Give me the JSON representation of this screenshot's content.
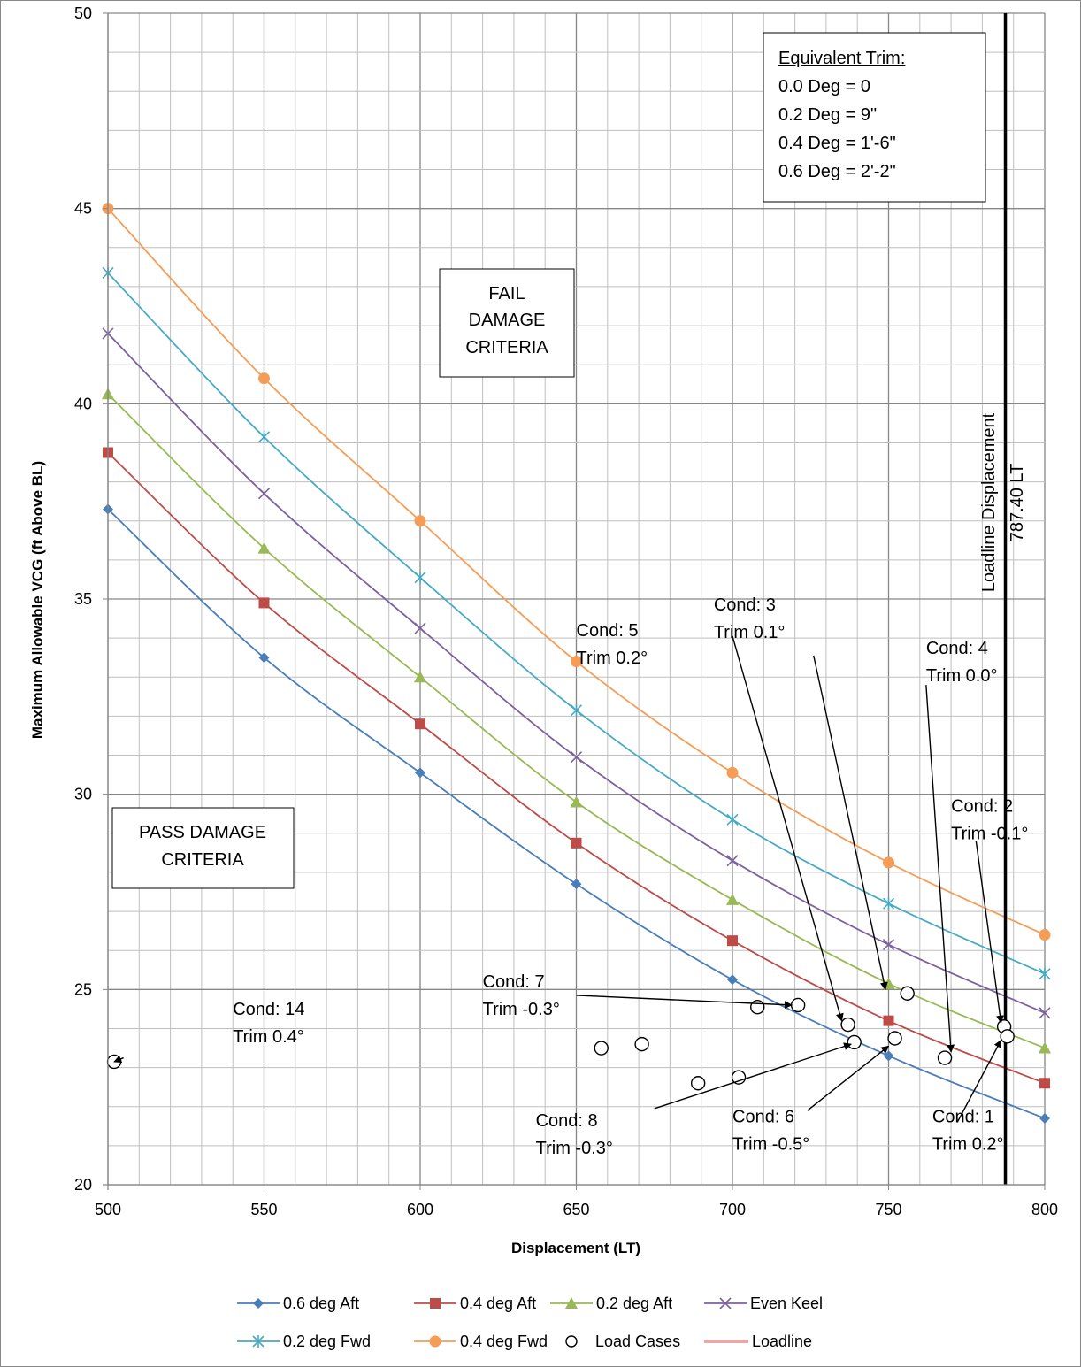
{
  "chart_data": {
    "type": "line",
    "xlabel": "Displacement  (LT)",
    "ylabel": "Maximum Allowable  VCG (ft Above BL)",
    "xlim": [
      500,
      800
    ],
    "ylim": [
      20,
      50
    ],
    "x_ticks": [
      "500",
      "550",
      "600",
      "650",
      "700",
      "750",
      "800"
    ],
    "y_ticks": [
      "20",
      "25",
      "30",
      "35",
      "40",
      "45",
      "50"
    ],
    "grid": true,
    "legend_position": "bottom",
    "x": [
      500,
      550,
      600,
      650,
      700,
      750,
      800
    ],
    "series": [
      {
        "name": "0.6 deg Aft",
        "color": "#4a7ebb",
        "marker": "diamond",
        "values": [
          37.3,
          33.5,
          30.55,
          27.7,
          25.25,
          23.3,
          21.7
        ]
      },
      {
        "name": "0.4 deg Aft",
        "color": "#be4b48",
        "marker": "square",
        "values": [
          38.75,
          34.9,
          31.8,
          28.75,
          26.25,
          24.2,
          22.6
        ]
      },
      {
        "name": "0.2 deg Aft",
        "color": "#98b954",
        "marker": "triangle",
        "values": [
          40.25,
          36.3,
          33.0,
          29.8,
          27.3,
          25.15,
          23.5
        ]
      },
      {
        "name": "Even Keel",
        "color": "#7d60a0",
        "marker": "x",
        "values": [
          41.8,
          37.7,
          34.25,
          30.95,
          28.3,
          26.15,
          24.4
        ]
      },
      {
        "name": "0.2 deg Fwd",
        "color": "#46aac5",
        "marker": "star",
        "values": [
          43.35,
          39.15,
          35.55,
          32.15,
          29.35,
          27.2,
          25.4
        ]
      },
      {
        "name": "0.4 deg Fwd",
        "color": "#f59d56",
        "marker": "circle",
        "values": [
          45.0,
          40.65,
          37.0,
          33.4,
          30.55,
          28.25,
          26.4
        ]
      }
    ],
    "load_cases": {
      "name": "Load Cases",
      "points": [
        [
          502,
          23.15
        ],
        [
          658,
          23.5
        ],
        [
          671,
          23.6
        ],
        [
          689,
          22.6
        ],
        [
          702,
          22.75
        ],
        [
          708,
          24.55
        ],
        [
          721,
          24.6
        ],
        [
          737,
          24.1
        ],
        [
          739,
          23.65
        ],
        [
          752,
          23.75
        ],
        [
          756,
          24.9
        ],
        [
          768,
          23.25
        ],
        [
          787,
          24.05
        ],
        [
          788,
          23.8
        ]
      ]
    },
    "loadline": {
      "name": "Loadline",
      "legend_color": "#e6a9a9",
      "x": 787.4,
      "label_1": "Loadline Displacement",
      "label_2": "787.40 LT"
    },
    "callouts": [
      {
        "line1": "Cond: 14",
        "line2": "Trim 0.4°",
        "tx": 540,
        "ty": 24.35,
        "ax": 505,
        "ay": 23.25,
        "hx": 502,
        "hy": 23.15
      },
      {
        "line1": "Cond: 7",
        "line2": "Trim -0.3°",
        "tx": 620,
        "ty": 25.05,
        "ax": 650,
        "ay": 24.85,
        "hx": 719,
        "hy": 24.6
      },
      {
        "line1": "Cond: 5",
        "line2": "Trim 0.2°",
        "tx": 650,
        "ty": 34.05,
        "ax": 700,
        "ay": 34.05,
        "hx": 735,
        "hy": 24.2
      },
      {
        "line1": "Cond: 3",
        "line2": "Trim 0.1°",
        "tx": 694,
        "ty": 34.7,
        "ax": 726,
        "ay": 33.55,
        "hx": 749,
        "hy": 25.0
      },
      {
        "line1": "Cond: 4",
        "line2": "Trim 0.0°",
        "tx": 762,
        "ty": 33.6,
        "ax": 762,
        "ay": 32.8,
        "hx": 770,
        "hy": 23.4
      },
      {
        "line1": "Cond: 2",
        "line2": "Trim -0.1°",
        "tx": 770,
        "ty": 29.55,
        "ax": 778,
        "ay": 28.8,
        "hx": 786,
        "hy": 24.15
      },
      {
        "line1": "Cond: 8",
        "line2": "Trim -0.3°",
        "tx": 637,
        "ty": 21.5,
        "ax": 675,
        "ay": 21.95,
        "hx": 738,
        "hy": 23.6
      },
      {
        "line1": "Cond: 6",
        "line2": "Trim -0.5°",
        "tx": 700,
        "ty": 21.6,
        "ax": 724,
        "ay": 21.9,
        "hx": 750,
        "hy": 23.55
      },
      {
        "line1": "Cond: 1",
        "line2": "Trim 0.2°",
        "tx": 764,
        "ty": 21.6,
        "ax": 772,
        "ay": 21.6,
        "hx": 786,
        "hy": 23.7
      }
    ],
    "annotation_boxes": [
      {
        "lines": [
          "FAIL",
          "DAMAGE",
          "CRITERIA"
        ]
      },
      {
        "lines": [
          "PASS DAMAGE",
          "CRITERIA"
        ]
      }
    ],
    "trim_box": {
      "heading": "Equivalent Trim:",
      "lines": [
        "0.0 Deg = 0",
        "0.2 Deg = 9\"",
        "0.4 Deg = 1'-6\"",
        "0.6 Deg = 2'-2\""
      ]
    }
  }
}
